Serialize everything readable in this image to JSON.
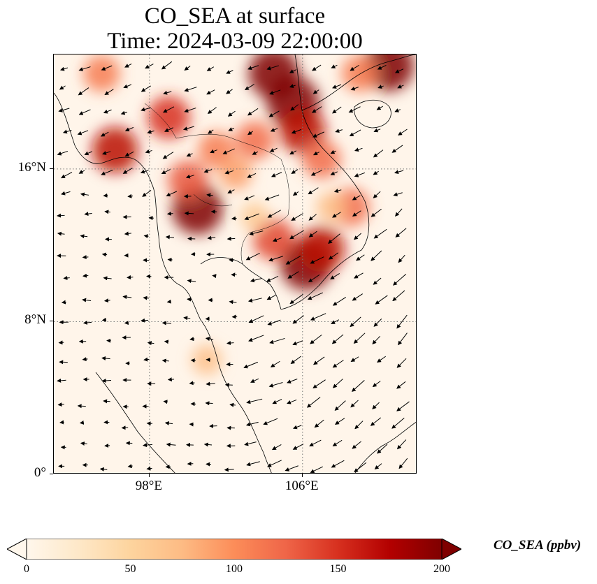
{
  "title": {
    "line1": "CO_SEA at surface",
    "line2": "Time: 2024-03-09 22:00:00"
  },
  "axes": {
    "lon_range": [
      93,
      112
    ],
    "lat_range": [
      0,
      22
    ],
    "y_ticks": [
      {
        "value": 16,
        "label": "16°N"
      },
      {
        "value": 8,
        "label": "8°N"
      },
      {
        "value": 0,
        "label": "0°"
      }
    ],
    "x_ticks": [
      {
        "value": 98,
        "label": "98°E"
      },
      {
        "value": 106,
        "label": "106°E"
      }
    ],
    "gridlines": "dotted"
  },
  "colorbar": {
    "label": "CO_SEA (ppbv)",
    "min": 0,
    "max": 200,
    "extend": "both",
    "colormap": "OrRd",
    "ticks": [
      {
        "value": 0,
        "label": "0"
      },
      {
        "value": 50,
        "label": "50"
      },
      {
        "value": 100,
        "label": "100"
      },
      {
        "value": 150,
        "label": "150"
      },
      {
        "value": 200,
        "label": "200"
      }
    ],
    "color_stops": [
      "#fff7ec",
      "#fee8c8",
      "#fdd49e",
      "#fdbb84",
      "#fc8d59",
      "#ef6548",
      "#d7301f",
      "#b30000",
      "#7f0000"
    ]
  },
  "plumes": [
    {
      "lon": 104.5,
      "lat": 21.0,
      "ppbv": 200
    },
    {
      "lon": 105.5,
      "lat": 19.5,
      "ppbv": 210
    },
    {
      "lon": 106.0,
      "lat": 18.0,
      "ppbv": 170
    },
    {
      "lon": 107.0,
      "lat": 16.5,
      "ppbv": 120
    },
    {
      "lon": 106.2,
      "lat": 11.0,
      "ppbv": 210
    },
    {
      "lon": 107.0,
      "lat": 11.8,
      "ppbv": 170
    },
    {
      "lon": 104.5,
      "lat": 12.3,
      "ppbv": 140
    },
    {
      "lon": 100.5,
      "lat": 13.9,
      "ppbv": 200
    },
    {
      "lon": 100.0,
      "lat": 15.4,
      "ppbv": 130
    },
    {
      "lon": 99.0,
      "lat": 18.7,
      "ppbv": 150
    },
    {
      "lon": 101.5,
      "lat": 17.0,
      "ppbv": 110
    },
    {
      "lon": 103.5,
      "lat": 17.5,
      "ppbv": 120
    },
    {
      "lon": 102.5,
      "lat": 15.8,
      "ppbv": 90
    },
    {
      "lon": 96.2,
      "lat": 17.0,
      "ppbv": 170
    },
    {
      "lon": 95.5,
      "lat": 21.0,
      "ppbv": 110
    },
    {
      "lon": 110.5,
      "lat": 21.4,
      "ppbv": 200
    },
    {
      "lon": 109.0,
      "lat": 21.0,
      "ppbv": 110
    },
    {
      "lon": 108.5,
      "lat": 14.0,
      "ppbv": 120
    },
    {
      "lon": 107.5,
      "lat": 14.0,
      "ppbv": 70
    },
    {
      "lon": 103.5,
      "lat": 13.5,
      "ppbv": 60
    },
    {
      "lon": 101.0,
      "lat": 6.0,
      "ppbv": 70
    }
  ],
  "wind": {
    "regimes": [
      {
        "region": "north",
        "direction": "southwest-ward"
      },
      {
        "region": "gulf",
        "direction": "westward"
      },
      {
        "region": "south-china-sea",
        "direction": "southwest-ward"
      }
    ]
  }
}
